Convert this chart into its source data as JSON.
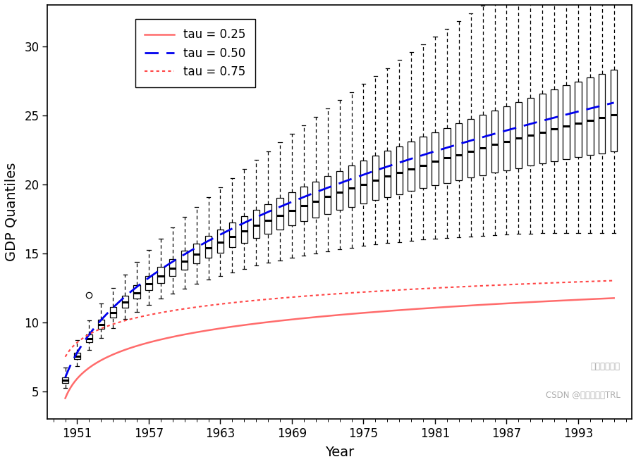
{
  "title": "",
  "xlabel": "Year",
  "ylabel": "GDP Quantiles",
  "xlim": [
    1948.5,
    1997.5
  ],
  "ylim": [
    3,
    33
  ],
  "yticks": [
    5,
    10,
    15,
    20,
    25,
    30
  ],
  "xtick_labels": [
    "1951",
    "1957",
    "1963",
    "1969",
    "1975",
    "1981",
    "1987",
    "1993"
  ],
  "xtick_positions": [
    1951,
    1957,
    1963,
    1969,
    1975,
    1981,
    1987,
    1993
  ],
  "start_year": 1950,
  "end_year": 1996,
  "tau_025_color": "#FF6B6B",
  "tau_050_color": "#0000EE",
  "tau_075_color": "#FF4444",
  "background_color": "#FFFFFF",
  "legend_labels": [
    "tau = 0.25",
    "tau = 0.50",
    "tau = 0.75"
  ],
  "watermark_line1": "拓端数据部落",
  "watermark_line2": "CSDN @拓端研究室TRL"
}
